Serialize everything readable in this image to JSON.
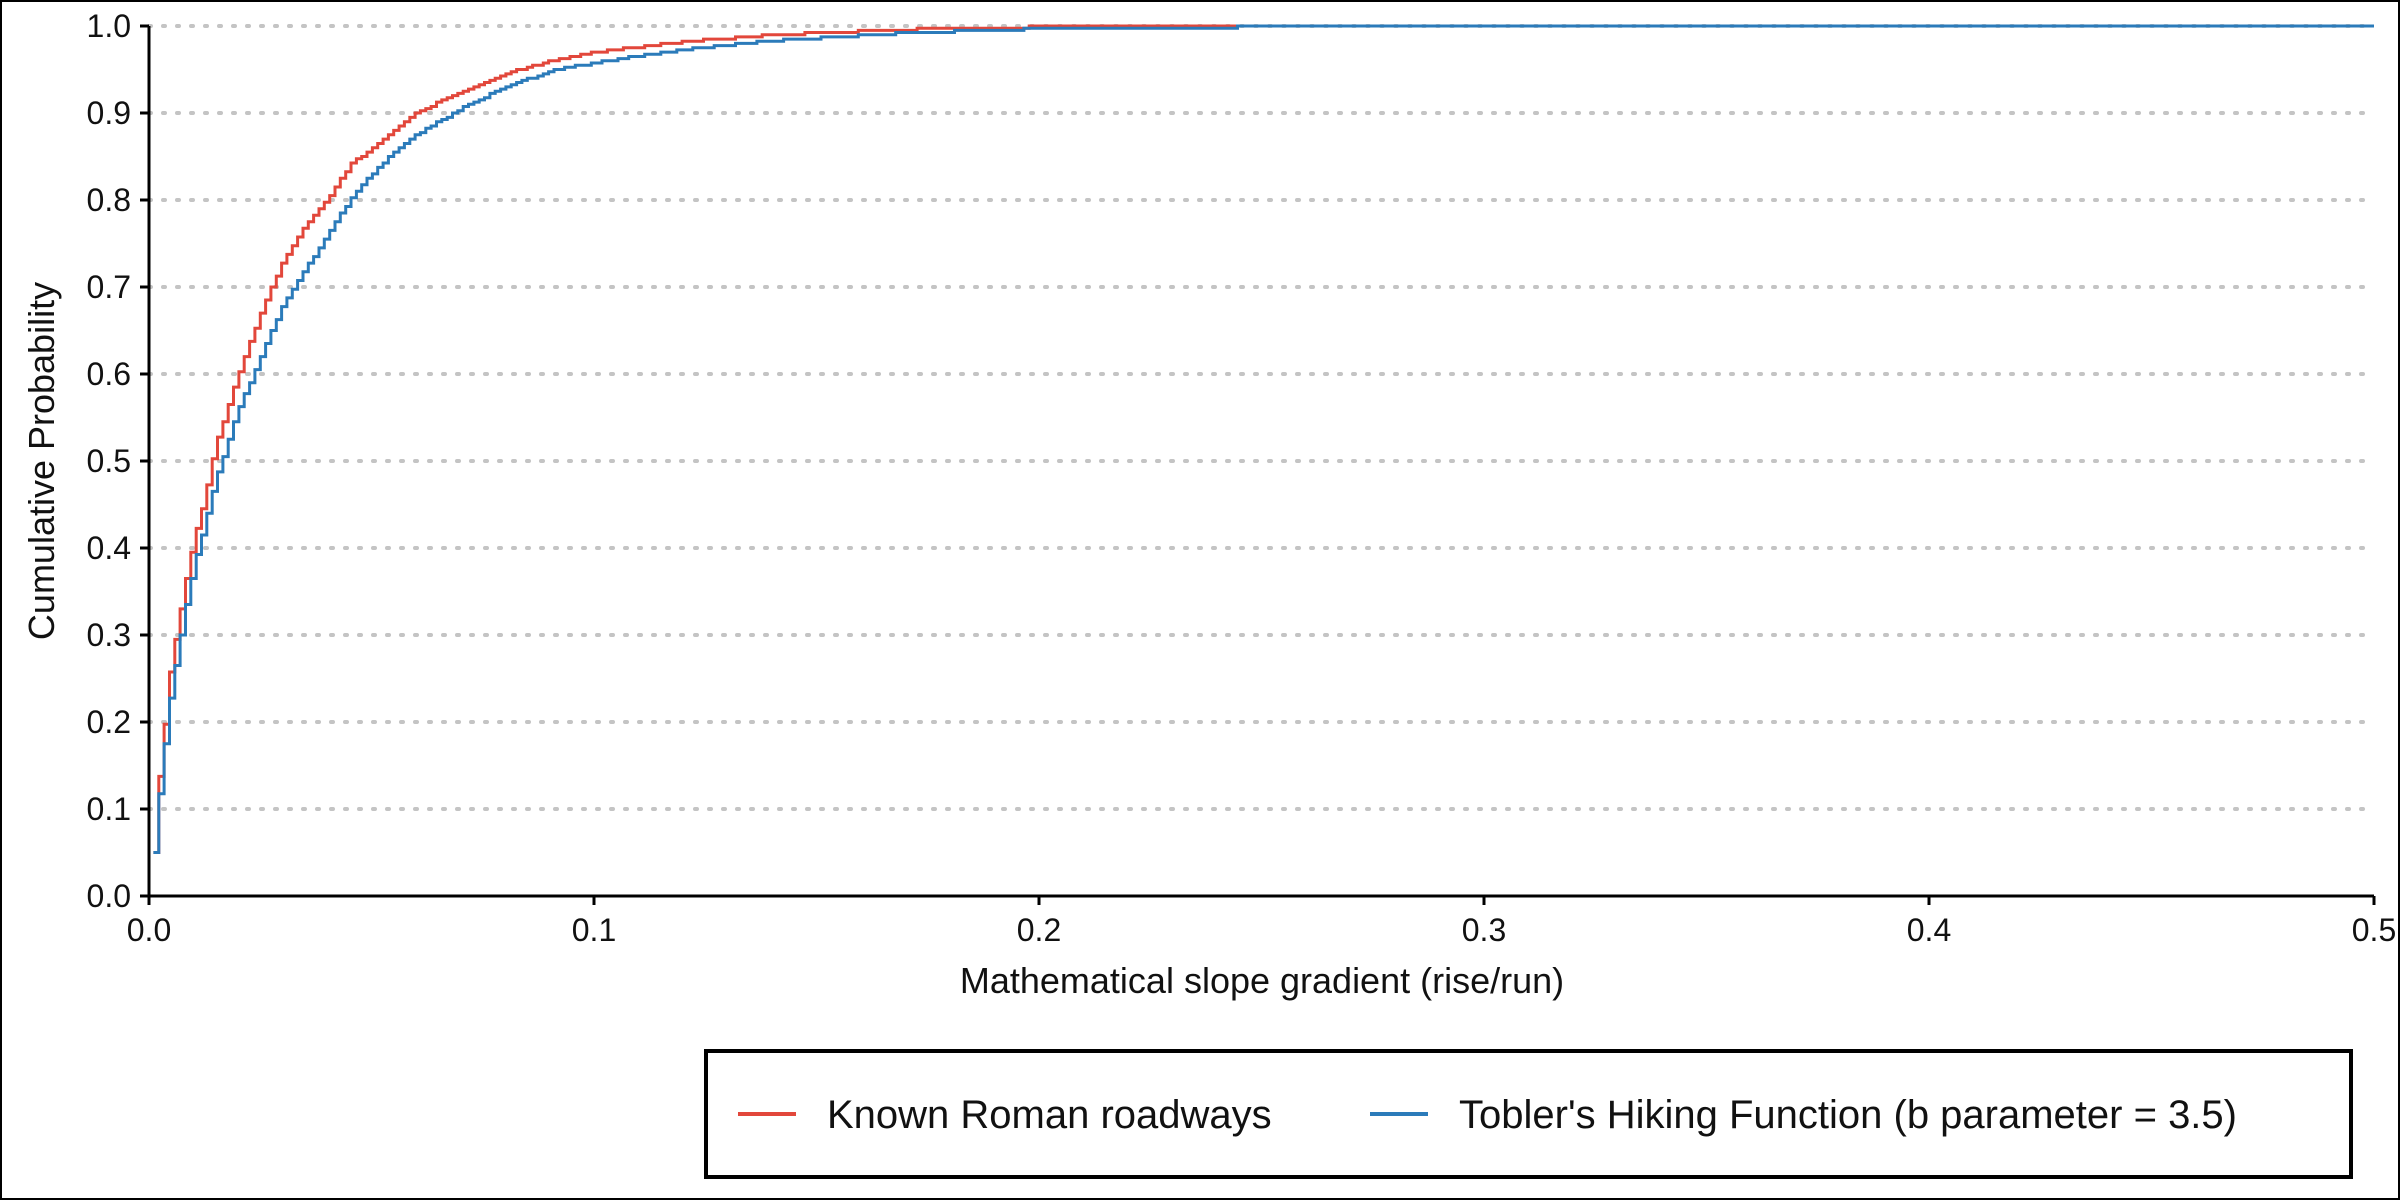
{
  "chart_data": {
    "type": "line",
    "xlabel": "Mathematical slope gradient (rise/run)",
    "ylabel": "Cumulative Probability",
    "xlim": [
      0,
      0.5
    ],
    "ylim": [
      0,
      1.0
    ],
    "xticks": [
      "0.0",
      "0.1",
      "0.2",
      "0.3",
      "0.4",
      "0.5"
    ],
    "xtick_values": [
      0,
      0.1,
      0.2,
      0.3,
      0.4,
      0.5
    ],
    "yticks": [
      "0.0",
      "0.1",
      "0.2",
      "0.3",
      "0.4",
      "0.5",
      "0.6",
      "0.7",
      "0.8",
      "0.9",
      "1.0"
    ],
    "ytick_values": [
      0,
      0.1,
      0.2,
      0.3,
      0.4,
      0.5,
      0.6,
      0.7,
      0.8,
      0.9,
      1.0
    ],
    "grid": "horizontal dotted",
    "legend_placement": "bottom-right",
    "series": [
      {
        "name": "Known Roman roadways",
        "color": "#e2473b",
        "x": [
          0.0,
          0.001,
          0.002,
          0.003,
          0.004,
          0.006,
          0.008,
          0.01,
          0.012,
          0.015,
          0.02,
          0.025,
          0.03,
          0.035,
          0.04,
          0.045,
          0.05,
          0.055,
          0.06,
          0.07,
          0.08,
          0.09,
          0.1,
          0.12,
          0.14,
          0.17,
          0.2,
          0.25,
          0.3,
          0.5
        ],
        "y": [
          0.05,
          0.08,
          0.13,
          0.17,
          0.24,
          0.3,
          0.36,
          0.41,
          0.45,
          0.52,
          0.6,
          0.67,
          0.73,
          0.77,
          0.8,
          0.84,
          0.86,
          0.88,
          0.9,
          0.925,
          0.945,
          0.96,
          0.97,
          0.982,
          0.99,
          0.996,
          0.999,
          1.0,
          1.0,
          1.0
        ]
      },
      {
        "name": "Tobler's Hiking Function (b parameter = 3.5)",
        "color": "#2b7bba",
        "x": [
          0.0,
          0.001,
          0.002,
          0.003,
          0.004,
          0.006,
          0.008,
          0.01,
          0.012,
          0.015,
          0.02,
          0.025,
          0.03,
          0.035,
          0.04,
          0.045,
          0.05,
          0.055,
          0.06,
          0.07,
          0.08,
          0.09,
          0.1,
          0.12,
          0.14,
          0.17,
          0.2,
          0.25,
          0.3,
          0.5
        ],
        "y": [
          0.05,
          0.07,
          0.11,
          0.15,
          0.21,
          0.27,
          0.33,
          0.38,
          0.42,
          0.48,
          0.56,
          0.62,
          0.68,
          0.72,
          0.76,
          0.8,
          0.83,
          0.855,
          0.875,
          0.905,
          0.93,
          0.948,
          0.958,
          0.973,
          0.983,
          0.992,
          0.997,
          0.999,
          1.0,
          1.0
        ]
      }
    ]
  }
}
